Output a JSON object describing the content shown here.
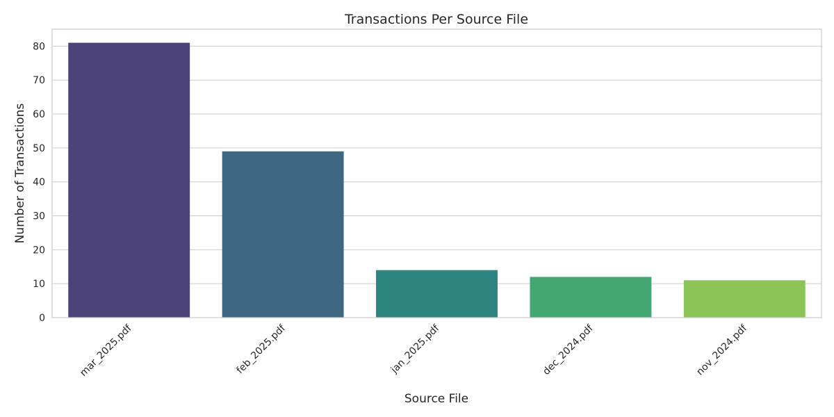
{
  "chart_data": {
    "type": "bar",
    "title": "Transactions Per Source File",
    "xlabel": "Source File",
    "ylabel": "Number of Transactions",
    "categories": [
      "mar_2025.pdf",
      "feb_2025.pdf",
      "jan_2025.pdf",
      "dec_2024.pdf",
      "nov_2024.pdf"
    ],
    "values": [
      81,
      49,
      14,
      12,
      11
    ],
    "colors": [
      "#4a4279",
      "#3d6782",
      "#2e8480",
      "#43a773",
      "#8dc458"
    ],
    "ylim": [
      0,
      85
    ],
    "yticks": [
      0,
      10,
      20,
      30,
      40,
      50,
      60,
      70,
      80
    ],
    "grid": true,
    "legend": "none"
  }
}
